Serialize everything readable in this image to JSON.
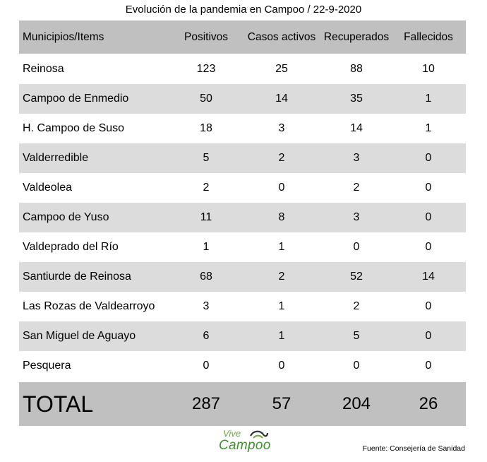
{
  "chart_data": {
    "type": "table",
    "title": "Evolución de la pandemia en Campoo / 22-9-2020",
    "columns": [
      "Municipios/Items",
      "Positivos",
      "Casos activos",
      "Recuperados",
      "Fallecidos"
    ],
    "rows": [
      [
        "Reinosa",
        "123",
        "25",
        "88",
        "10"
      ],
      [
        "Campoo de Enmedio",
        "50",
        "14",
        "35",
        "1"
      ],
      [
        "H. Campoo de Suso",
        "18",
        "3",
        "14",
        "1"
      ],
      [
        "Valderredible",
        "5",
        "2",
        "3",
        "0"
      ],
      [
        "Valdeolea",
        "2",
        "0",
        "2",
        "0"
      ],
      [
        "Campoo de Yuso",
        "11",
        "8",
        "3",
        "0"
      ],
      [
        "Valdeprado del Río",
        "1",
        "1",
        "0",
        "0"
      ],
      [
        "Santiurde de Reinosa",
        "68",
        "2",
        "52",
        "14"
      ],
      [
        "Las Rozas de Valdearroyo",
        "3",
        "1",
        "2",
        "0"
      ],
      [
        "San Miguel de Aguayo",
        "6",
        "1",
        "5",
        "0"
      ],
      [
        "Pesquera",
        "0",
        "0",
        "0",
        "0"
      ]
    ],
    "total": [
      "TOTAL",
      "287",
      "57",
      "204",
      "26"
    ]
  },
  "footer": {
    "logo_top": "Vive",
    "logo_bottom": "Campoo",
    "source": "Fuente: Consejería de Sanidad"
  },
  "colors": {
    "header_bg": "#c0c0c0",
    "alt_row_bg": "#dcdcdc",
    "logo_green": "#3e8f2f"
  }
}
